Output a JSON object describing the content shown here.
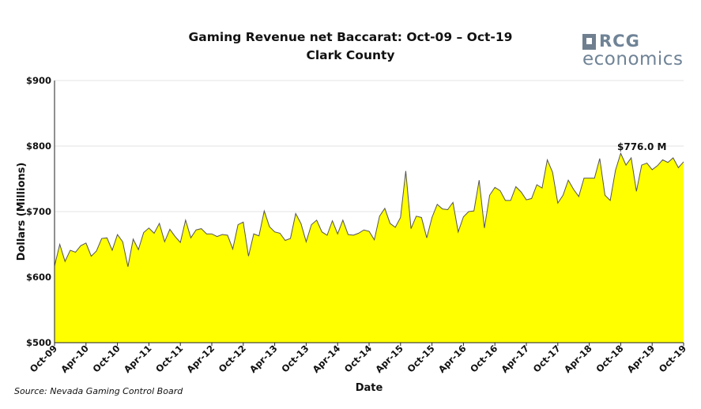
{
  "chart_data": {
    "type": "area",
    "title": "Gaming Revenue net Baccarat: Oct-09 – Oct-19",
    "subtitle": "Clark County",
    "xlabel": "Date",
    "ylabel": "Dollars (Millions)",
    "ylim": [
      500,
      900
    ],
    "yticks": [
      "$500",
      "$600",
      "$700",
      "$800",
      "$900"
    ],
    "ytick_values": [
      500,
      600,
      700,
      800,
      900
    ],
    "xtick_labels": [
      "Oct-09",
      "Apr-10",
      "Oct-10",
      "Apr-11",
      "Oct-11",
      "Apr-12",
      "Oct-12",
      "Apr-13",
      "Oct-13",
      "Apr-14",
      "Oct-14",
      "Apr-15",
      "Oct-15",
      "Apr-16",
      "Oct-16",
      "Apr-17",
      "Oct-17",
      "Apr-18",
      "Oct-18",
      "Apr-19",
      "Oct-19"
    ],
    "x_start": "Oct-09",
    "x_end": "Oct-19",
    "grid": "horizontal",
    "fill_color": "#ffff00",
    "line_color": "#555555",
    "annotation": "$776.0 M",
    "series": [
      {
        "values": [
          617,
          650,
          624,
          641,
          638,
          648,
          652,
          632,
          640,
          659,
          660,
          641,
          665,
          654,
          616,
          658,
          642,
          668,
          675,
          667,
          682,
          654,
          673,
          662,
          653,
          687,
          660,
          672,
          674,
          666,
          666,
          662,
          665,
          664,
          643,
          680,
          684,
          632,
          666,
          663,
          701,
          677,
          669,
          667,
          656,
          659,
          697,
          682,
          654,
          680,
          687,
          669,
          664,
          686,
          666,
          687,
          665,
          664,
          667,
          672,
          670,
          657,
          693,
          705,
          682,
          676,
          691,
          762,
          674,
          693,
          691,
          660,
          691,
          711,
          704,
          703,
          714,
          669,
          692,
          700,
          701,
          748,
          675,
          725,
          737,
          732,
          717,
          717,
          738,
          730,
          718,
          720,
          741,
          736,
          779,
          760,
          713,
          725,
          748,
          734,
          723,
          751,
          751,
          751,
          781,
          725,
          717,
          763,
          789,
          771,
          782,
          731,
          771,
          774,
          764,
          770,
          779,
          775,
          782,
          767,
          776
        ]
      }
    ]
  },
  "logo": {
    "top": "RCG",
    "bottom": "economics"
  },
  "source": "Source: Nevada Gaming Control Board"
}
